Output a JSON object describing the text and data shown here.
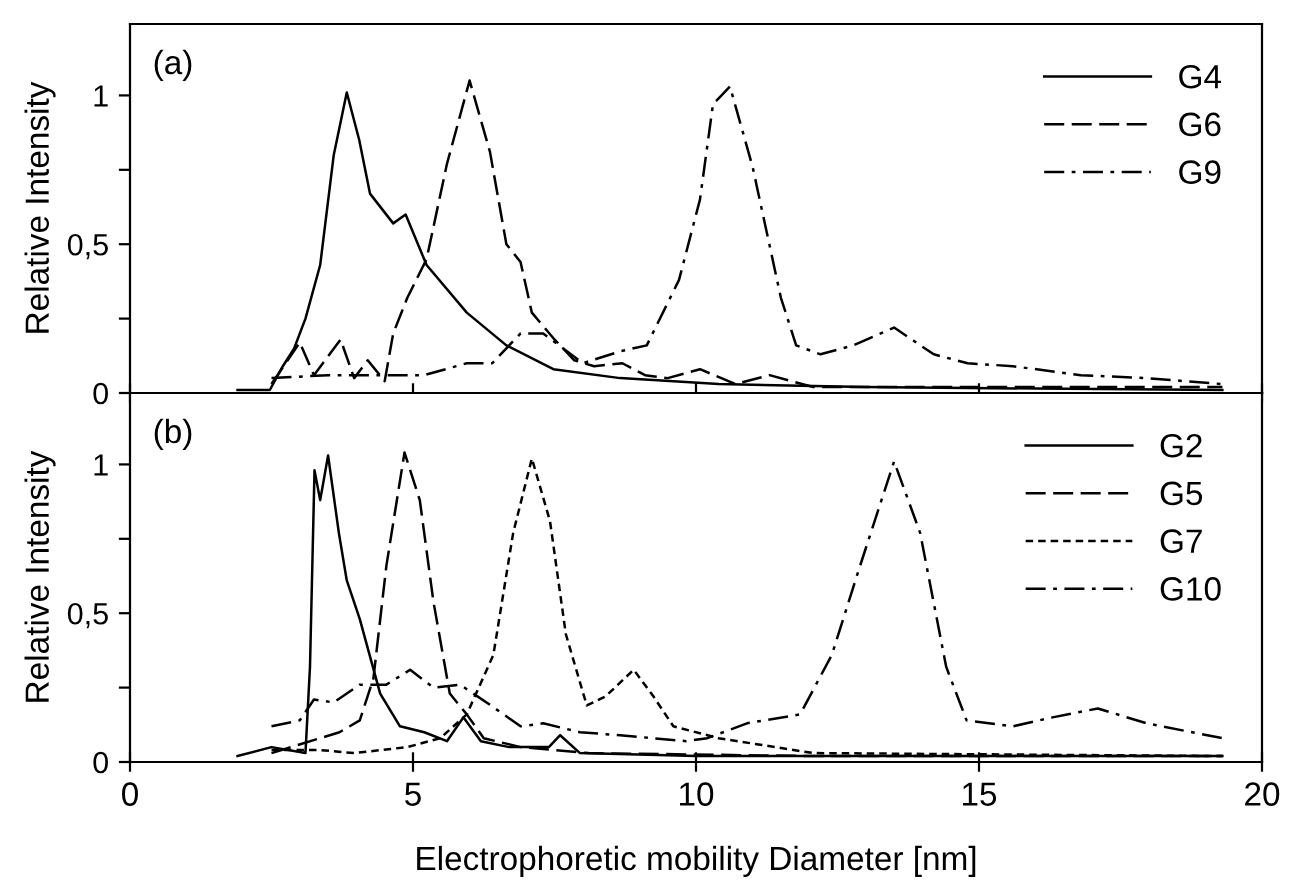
{
  "chart_data": [
    {
      "type": "line",
      "ylabel": "Relative Intensity",
      "annotations": [
        "(a)"
      ],
      "legend": "top right",
      "tick_labels": "y",
      "grid": false,
      "xlim": [
        0,
        20
      ],
      "ylim": [
        0,
        1.24
      ],
      "xticks": [
        {
          "value": 0,
          "label": null
        },
        {
          "value": 5,
          "label": null
        },
        {
          "value": 10,
          "label": null
        },
        {
          "value": 15,
          "label": null
        },
        {
          "value": 20,
          "label": null
        }
      ],
      "yticks": [
        0,
        {
          "value": 0.25,
          "label": null
        },
        {
          "value": 0.5,
          "label": "0,5"
        },
        {
          "value": 0.75,
          "label": null
        },
        1
      ],
      "series": [
        {
          "name": "G4",
          "color": "#000000",
          "line_style": "solid",
          "x": [
            1.9,
            2.47,
            2.7,
            2.9,
            3.1,
            3.36,
            3.6,
            3.83,
            4.05,
            4.24,
            4.65,
            4.87,
            5.24,
            5.95,
            6.65,
            7.48,
            8.66,
            10.4,
            13,
            16,
            19.3
          ],
          "values": [
            0.01,
            0.01,
            0.09,
            0.15,
            0.25,
            0.43,
            0.8,
            1.01,
            0.85,
            0.67,
            0.57,
            0.6,
            0.43,
            0.27,
            0.16,
            0.08,
            0.05,
            0.03,
            0.02,
            0.015,
            0.01
          ]
        },
        {
          "name": "G6",
          "color": "#000000",
          "line_style": "dashed",
          "x": [
            2.5,
            3.0,
            3.25,
            3.72,
            3.96,
            4.2,
            4.5,
            4.65,
            4.9,
            5.24,
            5.6,
            6.0,
            6.36,
            6.65,
            6.9,
            7.1,
            7.5,
            7.85,
            8.2,
            8.7,
            9.1,
            9.5,
            10.07,
            10.7,
            11.3,
            12.07,
            15,
            19.3
          ],
          "values": [
            0.03,
            0.17,
            0.06,
            0.18,
            0.05,
            0.11,
            0.04,
            0.2,
            0.32,
            0.45,
            0.77,
            1.05,
            0.81,
            0.5,
            0.44,
            0.27,
            0.18,
            0.11,
            0.09,
            0.1,
            0.06,
            0.05,
            0.08,
            0.03,
            0.06,
            0.02,
            0.02,
            0.02
          ]
        },
        {
          "name": "G9",
          "color": "#000000",
          "line_style": "dashdot",
          "x": [
            2.5,
            3.5,
            4.5,
            5.2,
            5.95,
            6.4,
            6.9,
            7.3,
            8.0,
            8.66,
            9.13,
            9.7,
            10.07,
            10.3,
            10.6,
            11.0,
            11.5,
            11.77,
            12.2,
            12.78,
            13.5,
            14.2,
            14.8,
            15.6,
            16.8,
            17.96,
            19.3
          ],
          "values": [
            0.05,
            0.06,
            0.06,
            0.06,
            0.1,
            0.1,
            0.2,
            0.2,
            0.1,
            0.14,
            0.16,
            0.38,
            0.65,
            0.97,
            1.03,
            0.76,
            0.32,
            0.16,
            0.13,
            0.16,
            0.22,
            0.13,
            0.1,
            0.09,
            0.06,
            0.05,
            0.03
          ]
        }
      ]
    },
    {
      "type": "line",
      "ylabel": "Relative Intensity",
      "xlabel": "Electrophoretic mobility Diameter [nm]",
      "annotations": [
        "(b)"
      ],
      "legend": "top right",
      "grid": false,
      "xlim": [
        0,
        20
      ],
      "ylim": [
        0,
        1.24
      ],
      "xticks": [
        0,
        5,
        10,
        15,
        20
      ],
      "yticks": [
        0,
        {
          "value": 0.25,
          "label": null
        },
        {
          "value": 0.5,
          "label": "0,5"
        },
        {
          "value": 0.75,
          "label": null
        },
        1
      ],
      "series": [
        {
          "name": "G2",
          "color": "#000000",
          "line_style": "solid",
          "x": [
            1.9,
            2.5,
            3.1,
            3.18,
            3.26,
            3.36,
            3.5,
            3.69,
            3.83,
            4.06,
            4.42,
            4.77,
            5.2,
            5.6,
            5.89,
            6.2,
            6.7,
            7.4,
            7.6,
            7.95,
            10,
            15,
            19.3
          ],
          "values": [
            0.02,
            0.05,
            0.03,
            0.32,
            0.98,
            0.88,
            1.03,
            0.77,
            0.61,
            0.48,
            0.23,
            0.12,
            0.1,
            0.07,
            0.15,
            0.07,
            0.05,
            0.05,
            0.09,
            0.03,
            0.02,
            0.02,
            0.02
          ]
        },
        {
          "name": "G5",
          "color": "#000000",
          "line_style": "dashed",
          "x": [
            2.5,
            3.7,
            4.06,
            4.3,
            4.53,
            4.85,
            5.12,
            5.36,
            5.65,
            5.95,
            6.25,
            6.9,
            8.1,
            12,
            19.3
          ],
          "values": [
            0.03,
            0.1,
            0.14,
            0.28,
            0.66,
            1.04,
            0.88,
            0.54,
            0.23,
            0.16,
            0.08,
            0.05,
            0.03,
            0.02,
            0.02
          ]
        },
        {
          "name": "G7",
          "color": "#000000",
          "line_style": "dotted",
          "x": [
            2.5,
            3.36,
            3.96,
            4.9,
            5.48,
            5.95,
            6.42,
            6.77,
            7.1,
            7.42,
            7.7,
            8.07,
            8.4,
            8.9,
            9.25,
            9.6,
            10.4,
            12.07,
            19.3
          ],
          "values": [
            0.04,
            0.04,
            0.03,
            0.05,
            0.08,
            0.16,
            0.36,
            0.77,
            1.02,
            0.81,
            0.43,
            0.19,
            0.22,
            0.31,
            0.22,
            0.12,
            0.08,
            0.03,
            0.02
          ]
        },
        {
          "name": "G10",
          "color": "#000000",
          "line_style": "dashdot",
          "x": [
            2.5,
            3.0,
            3.25,
            3.6,
            4.06,
            4.53,
            4.95,
            5.36,
            5.83,
            6.3,
            6.9,
            7.3,
            7.95,
            8.66,
            9.83,
            10.2,
            10.9,
            11.84,
            12.4,
            12.9,
            13.5,
            13.96,
            14.42,
            14.78,
            15.6,
            16.3,
            17.1,
            17.96,
            19.3
          ],
          "values": [
            0.12,
            0.14,
            0.21,
            0.2,
            0.26,
            0.26,
            0.31,
            0.25,
            0.26,
            0.2,
            0.12,
            0.13,
            0.1,
            0.09,
            0.07,
            0.08,
            0.13,
            0.16,
            0.36,
            0.66,
            1.01,
            0.77,
            0.32,
            0.14,
            0.12,
            0.15,
            0.18,
            0.13,
            0.08
          ]
        }
      ]
    }
  ]
}
